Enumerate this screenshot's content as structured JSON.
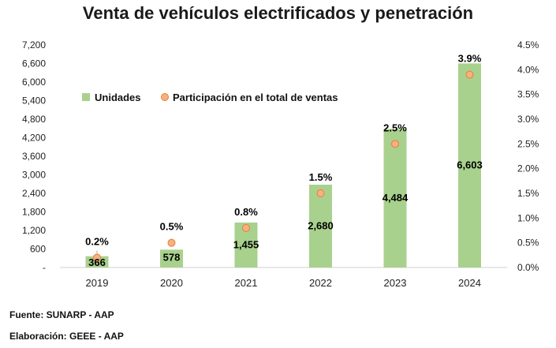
{
  "chart_data": {
    "type": "bar",
    "title": "Venta de vehículos electrificados y penetración",
    "categories": [
      "2019",
      "2020",
      "2021",
      "2022",
      "2023",
      "2024"
    ],
    "series": [
      {
        "name": "Unidades",
        "axis": "left",
        "type": "bar",
        "values": [
          366,
          578,
          1455,
          2680,
          4484,
          6603
        ],
        "labels": [
          "366",
          "578",
          "1,455",
          "2,680",
          "4,484",
          "6,603"
        ],
        "color": "#a9d18e"
      },
      {
        "name": "Participación en el total de ventas",
        "axis": "right",
        "type": "scatter",
        "values": [
          0.2,
          0.5,
          0.8,
          1.5,
          2.5,
          3.9
        ],
        "labels": [
          "0.2%",
          "0.5%",
          "0.8%",
          "1.5%",
          "2.5%",
          "3.9%"
        ],
        "color": "#f4b183",
        "edge_color": "#ed7d31"
      }
    ],
    "y_left": {
      "ylim": [
        0,
        7200
      ],
      "ticks": [
        "-",
        "600",
        "1,200",
        "1,800",
        "2,400",
        "3,000",
        "3,600",
        "4,200",
        "4,800",
        "5,400",
        "6,000",
        "6,600",
        "7,200"
      ]
    },
    "y_right": {
      "ylim": [
        0,
        4.5
      ],
      "ticks": [
        "0.0%",
        "0.5%",
        "1.0%",
        "1.5%",
        "2.0%",
        "2.5%",
        "3.0%",
        "3.5%",
        "4.0%",
        "4.5%"
      ]
    },
    "grid": false,
    "legend": "top-left"
  },
  "footer": {
    "source": "Fuente: SUNARP - AAP",
    "prepared_by": "Elaboración: GEEE - AAP"
  }
}
